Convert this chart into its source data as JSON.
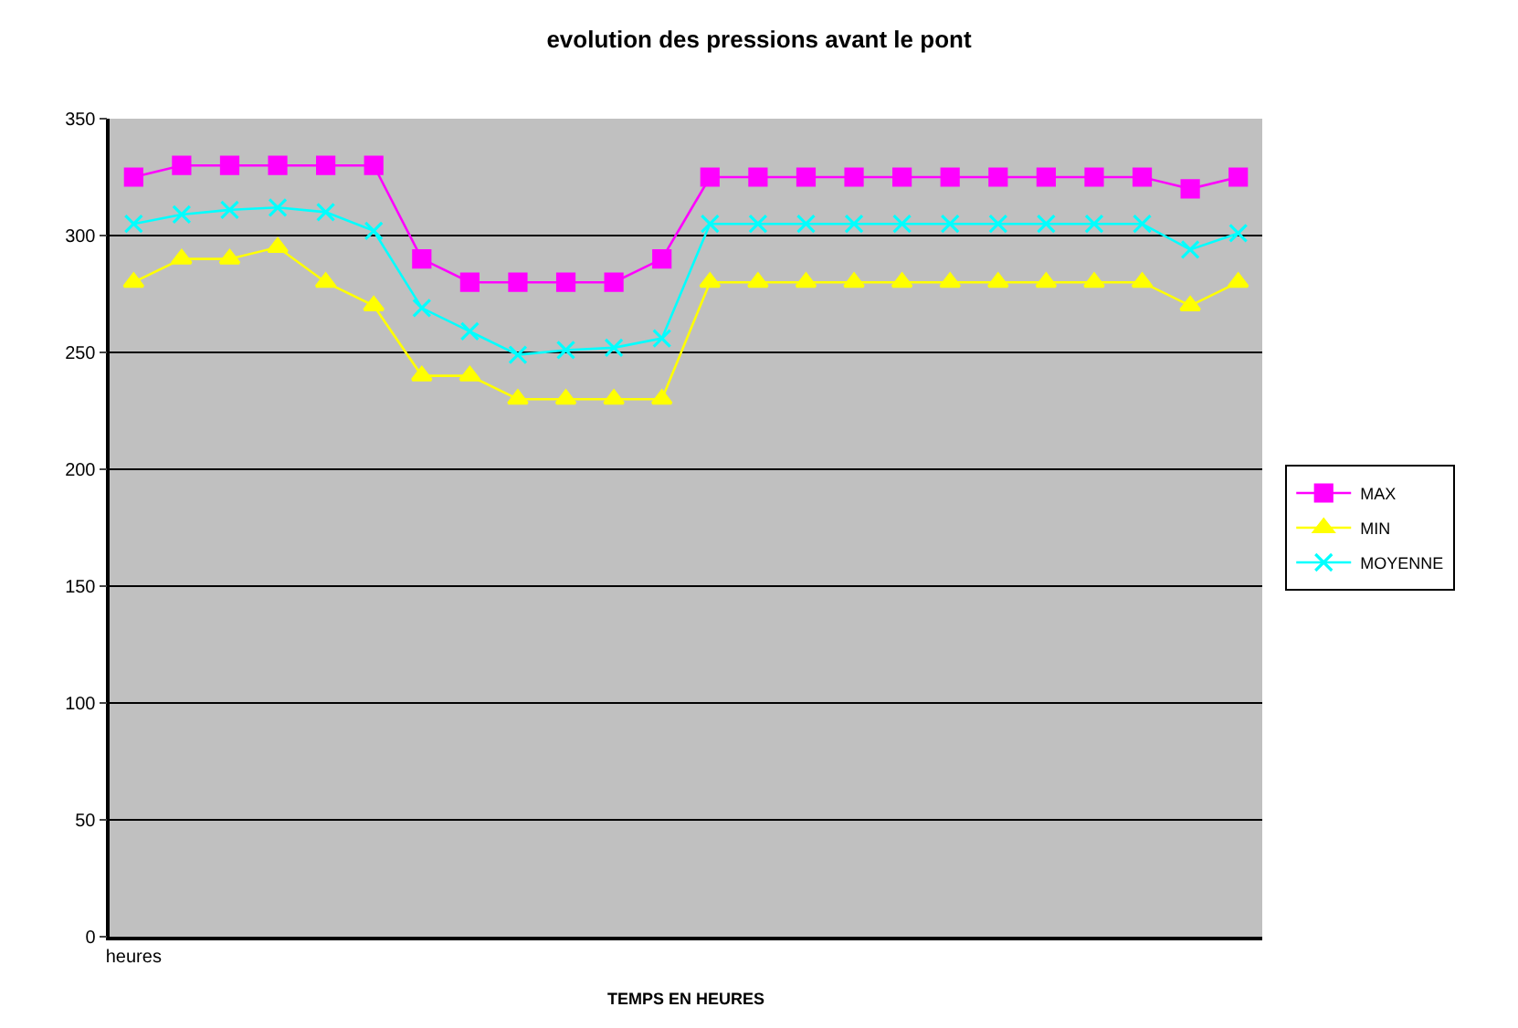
{
  "chart_data": {
    "type": "line",
    "title": "evolution des pressions avant le pont",
    "xlabel": "TEMPS EN HEURES",
    "categories": [
      "heures",
      null,
      null,
      null,
      null,
      null,
      null,
      null,
      null,
      null,
      null,
      null,
      null,
      null,
      null,
      null,
      null,
      null,
      null,
      null,
      null,
      null,
      null,
      null
    ],
    "ylim": [
      0,
      350
    ],
    "yticks": [
      0,
      50,
      100,
      150,
      200,
      250,
      300,
      350
    ],
    "grid": "y",
    "legend": "right",
    "series": [
      {
        "name": "MAX",
        "color": "#ff00ff",
        "marker": "square",
        "values": [
          325,
          330,
          330,
          330,
          330,
          330,
          290,
          280,
          280,
          280,
          280,
          290,
          325,
          325,
          325,
          325,
          325,
          325,
          325,
          325,
          325,
          325,
          320,
          325
        ]
      },
      {
        "name": "MIN",
        "color": "#ffff00",
        "marker": "triangle",
        "values": [
          280,
          290,
          290,
          295,
          280,
          270,
          240,
          240,
          230,
          230,
          230,
          230,
          280,
          280,
          280,
          280,
          280,
          280,
          280,
          280,
          280,
          280,
          270,
          280
        ]
      },
      {
        "name": "MOYENNE",
        "color": "#00ffff",
        "marker": "cross",
        "values": [
          305,
          309,
          311,
          312,
          310,
          302,
          269,
          259,
          249,
          251,
          252,
          256,
          305,
          305,
          305,
          305,
          305,
          305,
          305,
          305,
          305,
          305,
          294,
          301
        ]
      }
    ]
  }
}
